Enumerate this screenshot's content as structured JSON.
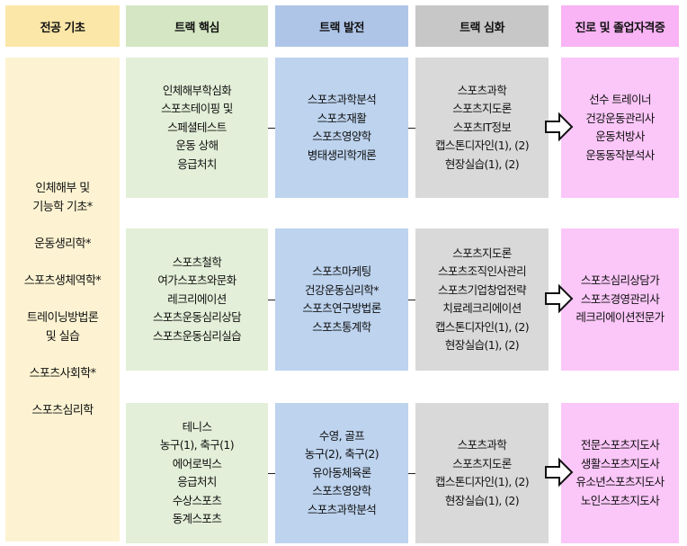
{
  "headers": {
    "base": "전공 기초",
    "core": "트랙 핵심",
    "development": "트랙 발전",
    "advanced": "트랙 심화",
    "career": "진로 및 졸업자격증"
  },
  "base_courses": [
    {
      "lines": [
        "인체해부 및",
        "기능학 기초*"
      ]
    },
    {
      "lines": [
        "운동생리학*"
      ]
    },
    {
      "lines": [
        "스포츠생체역학*"
      ]
    },
    {
      "lines": [
        "트레이닝방법론",
        "및 실습"
      ]
    },
    {
      "lines": [
        "스포츠사회학*"
      ]
    },
    {
      "lines": [
        "스포츠심리학"
      ]
    }
  ],
  "tracks": [
    {
      "core": [
        "인체해부학심화",
        "스포츠테이핑 및",
        "스페셜테스트",
        "운동 상해",
        "응급처치"
      ],
      "development": [
        "스포츠과학분석",
        "스포츠재활",
        "스포츠영양학",
        "병태생리학개론"
      ],
      "advanced": [
        "스포츠과학",
        "스포츠지도론",
        "스포츠IT정보",
        "캡스톤디자인(1), (2)",
        "현장실습(1), (2)"
      ],
      "career": [
        "선수 트레이너",
        "건강운동관리사",
        "운동처방사",
        "운동동작분석사"
      ]
    },
    {
      "core": [
        "스포츠철학",
        "여가스포츠와문화",
        "레크리에이션",
        "스포츠운동심리상담",
        "스포츠운동심리실습"
      ],
      "development": [
        "스포츠마케팅",
        "건강운동심리학*",
        "스포츠연구방법론",
        "스포츠통계학"
      ],
      "advanced": [
        "스포츠지도론",
        "스포츠조직인사관리",
        "스포츠기업창업전략",
        "치료레크리에이션",
        "캡스톤디자인(1), (2)",
        "현장실습(1), (2)"
      ],
      "career": [
        "스포츠심리상담가",
        "스포츠경영관리사",
        "레크리에이션전문가"
      ]
    },
    {
      "core": [
        "테니스",
        "농구(1), 축구(1)",
        "에어로빅스",
        "응급처치",
        "수상스포츠",
        "동계스포츠"
      ],
      "development": [
        "수영, 골프",
        "농구(2), 축구(2)",
        "유아동체육론",
        "스포츠영양학",
        "스포츠과학분석"
      ],
      "advanced": [
        "스포츠과학",
        "스포츠지도론",
        "캡스톤디자인(1), (2)",
        "현장실습(1), (2)"
      ],
      "career": [
        "전문스포츠지도사",
        "생활스포츠지도사",
        "유소년스포츠지도사",
        "노인스포츠지도사"
      ]
    }
  ],
  "colors": {
    "base": "#fdf3d2",
    "core": "#e3efd8",
    "development": "#bdd3ee",
    "advanced": "#d9d9d9",
    "career": "#fbc6f8"
  },
  "icons": {
    "transition": "right-arrow-icon"
  }
}
